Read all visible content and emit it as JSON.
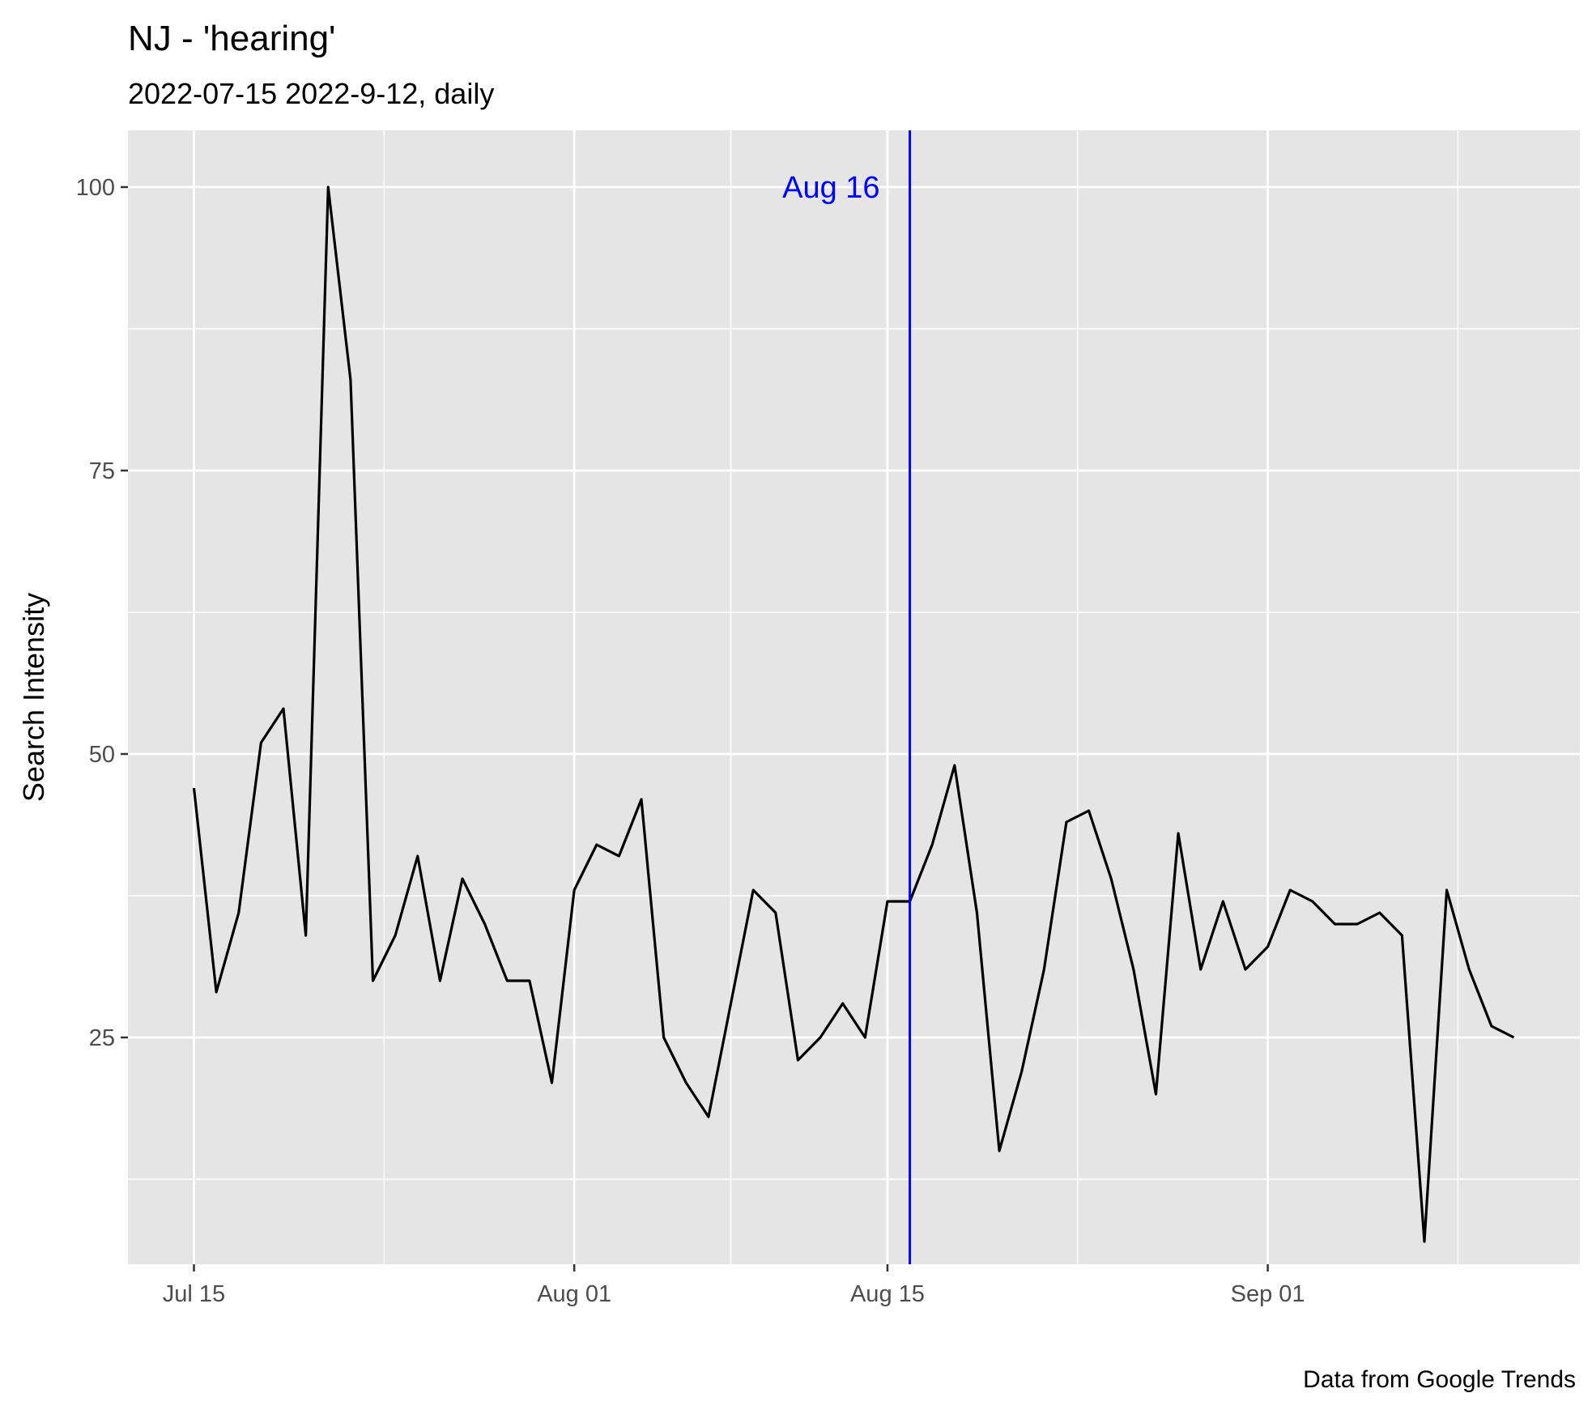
{
  "title": "NJ  - 'hearing'",
  "subtitle": "2022-07-15 2022-9-12, daily",
  "caption": "Data from Google Trends",
  "chart_data": {
    "type": "line",
    "title": "NJ  - 'hearing'",
    "subtitle": "2022-07-15 2022-9-12, daily",
    "xlabel": "",
    "ylabel": "Search Intensity",
    "x_start": "2022-07-15",
    "x_end": "2022-09-12",
    "x_ticks": [
      {
        "date": "2022-07-15",
        "label": "Jul 15"
      },
      {
        "date": "2022-08-01",
        "label": "Aug 01"
      },
      {
        "date": "2022-08-15",
        "label": "Aug 15"
      },
      {
        "date": "2022-09-01",
        "label": "Sep 01"
      }
    ],
    "y_ticks": [
      25,
      50,
      75,
      100
    ],
    "ylim": [
      5,
      105
    ],
    "grid": true,
    "x": [
      "2022-07-15",
      "2022-07-16",
      "2022-07-17",
      "2022-07-18",
      "2022-07-19",
      "2022-07-20",
      "2022-07-21",
      "2022-07-22",
      "2022-07-23",
      "2022-07-24",
      "2022-07-25",
      "2022-07-26",
      "2022-07-27",
      "2022-07-28",
      "2022-07-29",
      "2022-07-30",
      "2022-07-31",
      "2022-08-01",
      "2022-08-02",
      "2022-08-03",
      "2022-08-04",
      "2022-08-05",
      "2022-08-06",
      "2022-08-07",
      "2022-08-08",
      "2022-08-09",
      "2022-08-10",
      "2022-08-11",
      "2022-08-12",
      "2022-08-13",
      "2022-08-14",
      "2022-08-15",
      "2022-08-16",
      "2022-08-17",
      "2022-08-18",
      "2022-08-19",
      "2022-08-20",
      "2022-08-21",
      "2022-08-22",
      "2022-08-23",
      "2022-08-24",
      "2022-08-25",
      "2022-08-26",
      "2022-08-27",
      "2022-08-28",
      "2022-08-29",
      "2022-08-30",
      "2022-08-31",
      "2022-09-01",
      "2022-09-02",
      "2022-09-03",
      "2022-09-04",
      "2022-09-05",
      "2022-09-06",
      "2022-09-07",
      "2022-09-08",
      "2022-09-09",
      "2022-09-10",
      "2022-09-11",
      "2022-09-12"
    ],
    "series": [
      {
        "values": [
          47,
          29,
          36,
          51,
          54,
          34,
          100,
          83,
          30,
          34,
          41,
          30,
          39,
          35,
          30,
          30,
          21,
          38,
          42,
          41,
          46,
          25,
          21,
          18,
          28,
          38,
          36,
          23,
          25,
          28,
          25,
          37,
          37,
          42,
          49,
          36,
          15,
          22,
          31,
          44,
          45,
          39,
          31,
          20,
          43,
          31,
          37,
          31,
          33,
          38,
          37,
          35,
          35,
          36,
          34,
          7,
          38,
          31,
          26,
          25
        ],
        "color": "#000000"
      }
    ],
    "annotation": {
      "date": "2022-08-16",
      "label": "Aug 16",
      "color": "#0000ff"
    },
    "panel_background": "#e5e5e5",
    "grid_color": "#ffffff"
  }
}
